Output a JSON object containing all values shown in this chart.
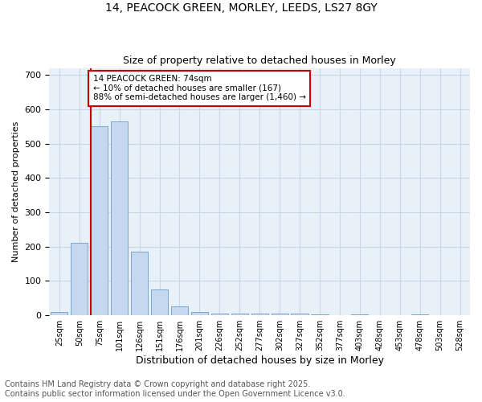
{
  "title1": "14, PEACOCK GREEN, MORLEY, LEEDS, LS27 8GY",
  "title2": "Size of property relative to detached houses in Morley",
  "xlabel": "Distribution of detached houses by size in Morley",
  "ylabel": "Number of detached properties",
  "categories": [
    "25sqm",
    "50sqm",
    "75sqm",
    "101sqm",
    "126sqm",
    "151sqm",
    "176sqm",
    "201sqm",
    "226sqm",
    "252sqm",
    "277sqm",
    "302sqm",
    "327sqm",
    "352sqm",
    "377sqm",
    "403sqm",
    "428sqm",
    "453sqm",
    "478sqm",
    "503sqm",
    "528sqm"
  ],
  "values": [
    10,
    210,
    550,
    565,
    185,
    75,
    25,
    10,
    5,
    5,
    5,
    5,
    5,
    3,
    0,
    3,
    0,
    0,
    3,
    0,
    0
  ],
  "bar_color": "#c5d8f0",
  "bar_edge_color": "#7aa8cc",
  "annotation_box_text": "14 PEACOCK GREEN: 74sqm\n← 10% of detached houses are smaller (167)\n88% of semi-detached houses are larger (1,460) →",
  "annotation_box_facecolor": "white",
  "annotation_box_edgecolor": "#cc0000",
  "vline_color": "#cc0000",
  "vline_x_index": 2,
  "ylim": [
    0,
    720
  ],
  "yticks": [
    0,
    100,
    200,
    300,
    400,
    500,
    600,
    700
  ],
  "grid_color": "#c8d8e8",
  "bg_color": "#e8f0f8",
  "footer_text": "Contains HM Land Registry data © Crown copyright and database right 2025.\nContains public sector information licensed under the Open Government Licence v3.0.",
  "title1_fontsize": 10,
  "title2_fontsize": 9,
  "xlabel_fontsize": 9,
  "ylabel_fontsize": 8,
  "footer_fontsize": 7
}
